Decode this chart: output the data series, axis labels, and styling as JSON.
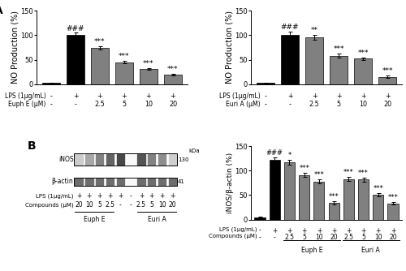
{
  "panel_A_left": {
    "ylabel": "NO Production (%)",
    "ylim": [
      0,
      150
    ],
    "yticks": [
      0,
      50,
      100,
      150
    ],
    "bar_values": [
      2,
      100,
      74,
      45,
      31,
      19
    ],
    "bar_errors": [
      0.5,
      5,
      4,
      3,
      2,
      2
    ],
    "bar_colors": [
      "#000000",
      "#000000",
      "#808080",
      "#808080",
      "#808080",
      "#808080"
    ],
    "xticklabels_lps": [
      "-",
      "+",
      "+",
      "+",
      "+",
      "+"
    ],
    "xticklabels_drug": [
      "-",
      "-",
      "2.5",
      "5",
      "10",
      "20"
    ],
    "drug_label": "Euph E (μM)",
    "lps_label": "LPS (1μg/mL)",
    "annotations": [
      {
        "bar": 1,
        "text": "###"
      },
      {
        "bar": 2,
        "text": "***"
      },
      {
        "bar": 3,
        "text": "***"
      },
      {
        "bar": 4,
        "text": "***"
      },
      {
        "bar": 5,
        "text": "***"
      }
    ]
  },
  "panel_A_right": {
    "ylabel": "NO Production (%)",
    "ylim": [
      0,
      150
    ],
    "yticks": [
      0,
      50,
      100,
      150
    ],
    "bar_values": [
      2,
      100,
      96,
      58,
      52,
      15
    ],
    "bar_errors": [
      0.5,
      8,
      5,
      4,
      3,
      2
    ],
    "bar_colors": [
      "#000000",
      "#000000",
      "#808080",
      "#808080",
      "#808080",
      "#808080"
    ],
    "xticklabels_lps": [
      "-",
      "+",
      "+",
      "+",
      "+",
      "+"
    ],
    "xticklabels_drug": [
      "-",
      "-",
      "2.5",
      "5",
      "10",
      "20"
    ],
    "drug_label": "Euri A (μM)",
    "lps_label": "LPS (1μg/mL)",
    "annotations": [
      {
        "bar": 1,
        "text": "###"
      },
      {
        "bar": 2,
        "text": "**"
      },
      {
        "bar": 3,
        "text": "***"
      },
      {
        "bar": 4,
        "text": "***"
      },
      {
        "bar": 5,
        "text": "***"
      }
    ]
  },
  "panel_B_right": {
    "ylabel": "iNOS/β-actin (%)",
    "ylim": [
      0,
      150
    ],
    "yticks": [
      0,
      50,
      100,
      150
    ],
    "bar_values": [
      5,
      122,
      117,
      91,
      78,
      34,
      83,
      82,
      51,
      33
    ],
    "bar_errors": [
      1,
      5,
      5,
      4,
      4,
      3,
      4,
      4,
      3,
      3
    ],
    "bar_colors": [
      "#000000",
      "#000000",
      "#808080",
      "#808080",
      "#808080",
      "#808080",
      "#808080",
      "#808080",
      "#808080",
      "#808080"
    ],
    "xticklabels_lps": [
      "-",
      "+",
      "+",
      "+",
      "+",
      "+",
      "+",
      "+",
      "+",
      "+"
    ],
    "xticklabels_drug": [
      "-",
      "-",
      "2.5",
      "5",
      "10",
      "20",
      "2.5",
      "5",
      "10",
      "20"
    ],
    "drug_label_euph": "Euph E",
    "drug_label_euri": "Euri A",
    "lps_label": "LPS (1μg/mL)",
    "compounds_label": "Compounds (μM)",
    "annotations": [
      {
        "bar": 1,
        "text": "###"
      },
      {
        "bar": 2,
        "text": "*"
      },
      {
        "bar": 3,
        "text": "***"
      },
      {
        "bar": 4,
        "text": "***"
      },
      {
        "bar": 5,
        "text": "***"
      },
      {
        "bar": 6,
        "text": "***"
      },
      {
        "bar": 7,
        "text": "***"
      },
      {
        "bar": 8,
        "text": "***"
      },
      {
        "bar": 9,
        "text": "***"
      }
    ]
  },
  "western_blot": {
    "lps_row": [
      "+",
      "+",
      "+",
      "+",
      "+",
      "-",
      "+",
      "+",
      "+",
      "+"
    ],
    "compounds_row": [
      "20",
      "10",
      "5",
      "2.5",
      "-",
      "-",
      "2.5",
      "5",
      "10",
      "20"
    ],
    "inos_intensities": [
      0.28,
      0.48,
      0.68,
      0.85,
      1.0,
      0.04,
      0.93,
      0.68,
      0.62,
      0.26
    ],
    "actin_intensities": [
      0.88,
      0.88,
      0.88,
      0.88,
      0.88,
      0.04,
      0.88,
      0.88,
      0.88,
      0.88
    ]
  },
  "ann_fontsize": 6.5,
  "axis_fontsize": 7,
  "tick_fontsize": 6,
  "label_fontsize": 5.8,
  "bar_width": 0.72
}
